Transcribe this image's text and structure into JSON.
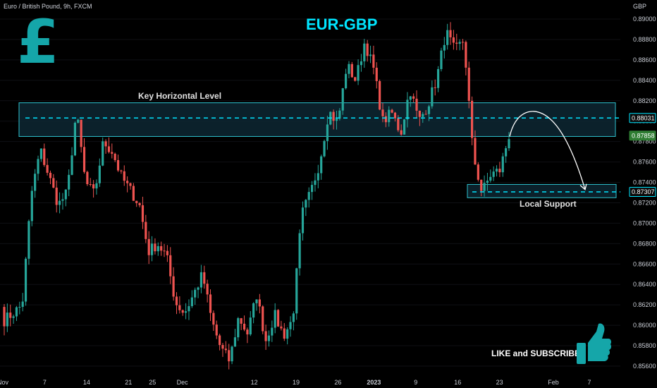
{
  "header": {
    "symbol_line": "Euro / British Pound, 9h, FXCM",
    "currency": "GBP"
  },
  "title": "EUR-GBP",
  "logo_icon": "pound-sign-icon",
  "logo_glyph": "£",
  "annotations": {
    "key_level": "Key Horizontal Level",
    "local_support": "Local Support",
    "cta": "LIKE and SUBSCRIBE",
    "cta_icon": "thumbs-up-icon"
  },
  "colors": {
    "background": "#000000",
    "up_candle": "#26a69a",
    "down_candle": "#ef5350",
    "accent": "#00e5ff",
    "zone_fill": "#0d2733",
    "zone_border": "#2ec4d0"
  },
  "chart_data": {
    "type": "candlestick",
    "title": "EUR-GBP",
    "ylim": [
      0.8551,
      0.8909
    ],
    "y_axis_side": "right",
    "y_ticks": [
      "0.89000",
      "0.88800",
      "0.88600",
      "0.88400",
      "0.88200",
      "0.88000",
      "0.87800",
      "0.87600",
      "0.87400",
      "0.87200",
      "0.87000",
      "0.86800",
      "0.86600",
      "0.86400",
      "0.86200",
      "0.86000",
      "0.85800",
      "0.85600"
    ],
    "x_ticks": [
      "Nov",
      "7",
      "14",
      "21",
      "25",
      "Dec",
      "12",
      "19",
      "26",
      "2023",
      "9",
      "16",
      "23",
      "Feb",
      "7"
    ],
    "price_labels": [
      {
        "label": "0.88031",
        "value": 0.88031,
        "style": "outline"
      },
      {
        "label": "0.87858",
        "value": 0.87858,
        "style": "filled"
      },
      {
        "label": "0.87307",
        "value": 0.87307,
        "style": "outline"
      }
    ],
    "zones": [
      {
        "name": "Key Horizontal Level",
        "from": 0.8785,
        "to": 0.8818,
        "dashed_level": 0.88031
      },
      {
        "name": "Local Support",
        "from": 0.8725,
        "to": 0.8738,
        "dashed_level": 0.87307
      }
    ],
    "projection": {
      "from": 0.8785,
      "peak": 0.8806,
      "to": 0.8733
    },
    "anchors": [
      [
        0.8618,
        0.863,
        0.86,
        0.8605
      ],
      [
        0.8603,
        0.8622,
        0.8594,
        0.8612
      ],
      [
        0.8612,
        0.8626,
        0.86,
        0.862
      ],
      [
        0.862,
        0.8736,
        0.861,
        0.8728
      ],
      [
        0.8728,
        0.8782,
        0.8718,
        0.8772
      ],
      [
        0.8772,
        0.8782,
        0.872,
        0.8745
      ],
      [
        0.8745,
        0.8758,
        0.87,
        0.8718
      ],
      [
        0.8718,
        0.8742,
        0.8712,
        0.873
      ],
      [
        0.873,
        0.8815,
        0.8722,
        0.881
      ],
      [
        0.881,
        0.8818,
        0.8736,
        0.874
      ],
      [
        0.874,
        0.875,
        0.8718,
        0.8728
      ],
      [
        0.8728,
        0.879,
        0.8724,
        0.878
      ],
      [
        0.878,
        0.8808,
        0.876,
        0.877
      ],
      [
        0.877,
        0.8782,
        0.8736,
        0.8745
      ],
      [
        0.8745,
        0.8754,
        0.8724,
        0.8732
      ],
      [
        0.8732,
        0.8745,
        0.871,
        0.8718
      ],
      [
        0.8718,
        0.8728,
        0.866,
        0.8672
      ],
      [
        0.8672,
        0.8688,
        0.8662,
        0.868
      ],
      [
        0.868,
        0.8692,
        0.866,
        0.8668
      ],
      [
        0.8668,
        0.868,
        0.8615,
        0.8622
      ],
      [
        0.8622,
        0.864,
        0.8598,
        0.8612
      ],
      [
        0.8612,
        0.864,
        0.86,
        0.863
      ],
      [
        0.863,
        0.8658,
        0.862,
        0.865
      ],
      [
        0.865,
        0.8665,
        0.8595,
        0.8605
      ],
      [
        0.8605,
        0.8612,
        0.8565,
        0.8578
      ],
      [
        0.8578,
        0.8588,
        0.8555,
        0.8565
      ],
      [
        0.8565,
        0.8618,
        0.8558,
        0.8608
      ],
      [
        0.8608,
        0.8622,
        0.8585,
        0.8592
      ],
      [
        0.8592,
        0.864,
        0.8586,
        0.863
      ],
      [
        0.863,
        0.864,
        0.8578,
        0.8585
      ],
      [
        0.8585,
        0.8618,
        0.858,
        0.861
      ],
      [
        0.861,
        0.8616,
        0.8584,
        0.859
      ],
      [
        0.859,
        0.8612,
        0.8586,
        0.8606
      ],
      [
        0.8606,
        0.8715,
        0.86,
        0.8708
      ],
      [
        0.8708,
        0.874,
        0.87,
        0.873
      ],
      [
        0.873,
        0.8768,
        0.8722,
        0.876
      ],
      [
        0.876,
        0.8818,
        0.8752,
        0.881
      ],
      [
        0.881,
        0.8815,
        0.8786,
        0.8798
      ],
      [
        0.8798,
        0.8865,
        0.8792,
        0.8855
      ],
      [
        0.8855,
        0.8862,
        0.883,
        0.884
      ],
      [
        0.884,
        0.889,
        0.8836,
        0.8878
      ],
      [
        0.8878,
        0.8882,
        0.8842,
        0.885
      ],
      [
        0.885,
        0.8856,
        0.8792,
        0.88
      ],
      [
        0.88,
        0.882,
        0.8788,
        0.8808
      ],
      [
        0.8808,
        0.8815,
        0.8776,
        0.8788
      ],
      [
        0.8788,
        0.884,
        0.8782,
        0.8832
      ],
      [
        0.8832,
        0.884,
        0.8792,
        0.88
      ],
      [
        0.88,
        0.8825,
        0.8794,
        0.8816
      ],
      [
        0.8816,
        0.8848,
        0.881,
        0.8842
      ],
      [
        0.8842,
        0.8895,
        0.8838,
        0.8888
      ],
      [
        0.8888,
        0.8892,
        0.886,
        0.8868
      ],
      [
        0.8868,
        0.8886,
        0.886,
        0.888
      ],
      [
        0.888,
        0.8884,
        0.876,
        0.8768
      ],
      [
        0.8768,
        0.8776,
        0.8722,
        0.873
      ],
      [
        0.873,
        0.8758,
        0.8728,
        0.8748
      ],
      [
        0.8748,
        0.8762,
        0.8742,
        0.8752
      ],
      [
        0.8752,
        0.8815,
        0.8748,
        0.8786
      ]
    ]
  }
}
